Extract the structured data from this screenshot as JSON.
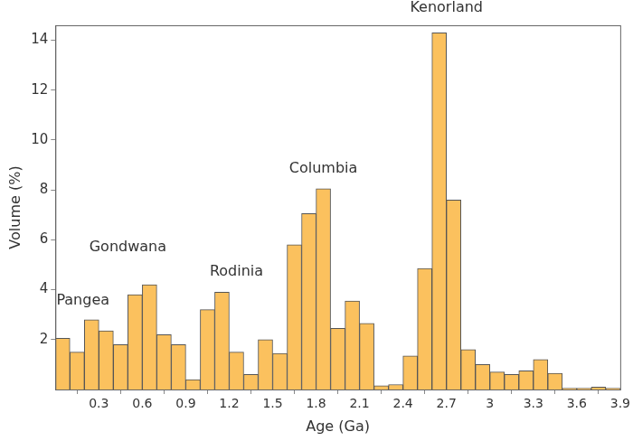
{
  "chart_data": {
    "type": "histogram",
    "x_label": "Age (Ga)",
    "y_label": "Volume (%)",
    "bins": [
      0,
      0.1,
      0.2,
      0.3,
      0.4,
      0.5,
      0.6,
      0.7,
      0.8,
      0.9,
      1.0,
      1.1,
      1.2,
      1.3,
      1.4,
      1.5,
      1.6,
      1.7,
      1.8,
      1.9,
      2.0,
      2.1,
      2.2,
      2.3,
      2.4,
      2.5,
      2.6,
      2.7,
      2.8,
      2.9,
      3.0,
      3.1,
      3.2,
      3.3,
      3.4,
      3.5,
      3.6,
      3.7,
      3.8,
      3.9
    ],
    "values": [
      2.05,
      1.5,
      2.8,
      2.35,
      1.8,
      3.8,
      4.2,
      2.2,
      1.8,
      0.4,
      3.2,
      3.9,
      1.5,
      0.6,
      2.0,
      1.45,
      5.8,
      7.05,
      8.05,
      2.45,
      3.55,
      2.65,
      0.15,
      0.2,
      1.35,
      4.85,
      14.3,
      7.6,
      1.6,
      1.0,
      0.7,
      0.6,
      0.75,
      1.2,
      0.65,
      0.05,
      0.05,
      0.1,
      0.05
    ],
    "color": "#fbc15e",
    "annotations": [
      "Pangea",
      "Gondwana",
      "Rodinia",
      "Columbia",
      "Kenorland"
    ],
    "xlim": [
      0,
      3.9
    ],
    "xticks": [
      0.3,
      0.6,
      0.9,
      1.2,
      1.5,
      1.8,
      2.1,
      2.4,
      2.7,
      3,
      3.3,
      3.6,
      3.9
    ],
    "ylim": [
      0,
      14.6
    ],
    "yticks": [
      2,
      4,
      6,
      8,
      10,
      12,
      14
    ],
    "grid": false
  }
}
